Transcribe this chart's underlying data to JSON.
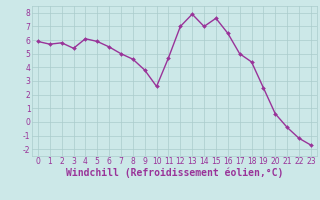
{
  "x": [
    0,
    1,
    2,
    3,
    4,
    5,
    6,
    7,
    8,
    9,
    10,
    11,
    12,
    13,
    14,
    15,
    16,
    17,
    18,
    19,
    20,
    21,
    22,
    23
  ],
  "y": [
    5.9,
    5.7,
    5.8,
    5.4,
    6.1,
    5.9,
    5.5,
    5.0,
    4.6,
    3.8,
    2.6,
    4.7,
    7.0,
    7.9,
    7.0,
    7.6,
    6.5,
    5.0,
    4.4,
    2.5,
    0.6,
    -0.4,
    -1.2,
    -1.7
  ],
  "line_color": "#993399",
  "marker": "D",
  "marker_size": 2.0,
  "line_width": 1.0,
  "xlabel": "Windchill (Refroidissement éolien,°C)",
  "xlabel_fontsize": 7.0,
  "xlim": [
    -0.5,
    23.5
  ],
  "ylim": [
    -2.5,
    8.5
  ],
  "yticks": [
    -2,
    -1,
    0,
    1,
    2,
    3,
    4,
    5,
    6,
    7,
    8
  ],
  "xticks": [
    0,
    1,
    2,
    3,
    4,
    5,
    6,
    7,
    8,
    9,
    10,
    11,
    12,
    13,
    14,
    15,
    16,
    17,
    18,
    19,
    20,
    21,
    22,
    23
  ],
  "background_color": "#cce8e8",
  "grid_color": "#aacccc",
  "tick_color": "#993399",
  "tick_fontsize": 5.5,
  "xlabel_color": "#993399"
}
